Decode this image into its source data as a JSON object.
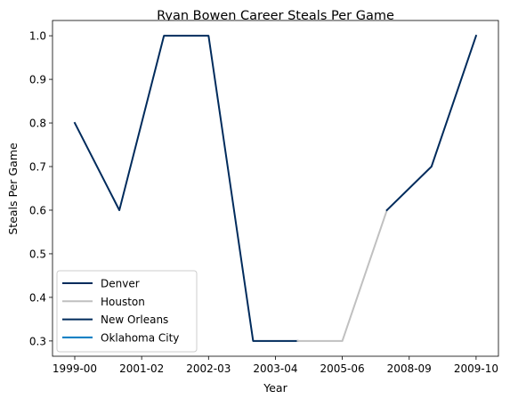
{
  "chart_data": {
    "type": "line",
    "title": "Ryan Bowen Career Steals Per Game",
    "xlabel": "Year",
    "ylabel": "Steals Per Game",
    "x_tick_labels": [
      "1999-00",
      "2001-02",
      "2002-03",
      "2003-04",
      "2005-06",
      "2008-09",
      "2009-10"
    ],
    "y_ticks": [
      0.3,
      0.4,
      0.5,
      0.6,
      0.7,
      0.8,
      0.9,
      1.0
    ],
    "y_tick_labels": [
      "0.3",
      "0.4",
      "0.5",
      "0.6",
      "0.7",
      "0.8",
      "0.9",
      "1.0"
    ],
    "ylim": [
      0.265,
      1.035
    ],
    "grid": false,
    "legend_position": "lower-left",
    "series": [
      {
        "name": "Denver",
        "color": "#002B5C",
        "points": [
          [
            0,
            0.8
          ],
          [
            1,
            0.6
          ],
          [
            2,
            1.0
          ],
          [
            3,
            1.0
          ],
          [
            4,
            0.3
          ],
          [
            5,
            0.3
          ]
        ]
      },
      {
        "name": "Houston",
        "color": "#C0C0C0",
        "points": [
          [
            5,
            0.3
          ],
          [
            6,
            0.3
          ],
          [
            7,
            0.6
          ]
        ]
      },
      {
        "name": "New Orleans",
        "color": "#002B5C",
        "points": [
          [
            7,
            0.6
          ],
          [
            8,
            0.7
          ],
          [
            9,
            1.0
          ]
        ]
      },
      {
        "name": "Oklahoma City",
        "color": "#007AC1",
        "points": []
      }
    ]
  }
}
